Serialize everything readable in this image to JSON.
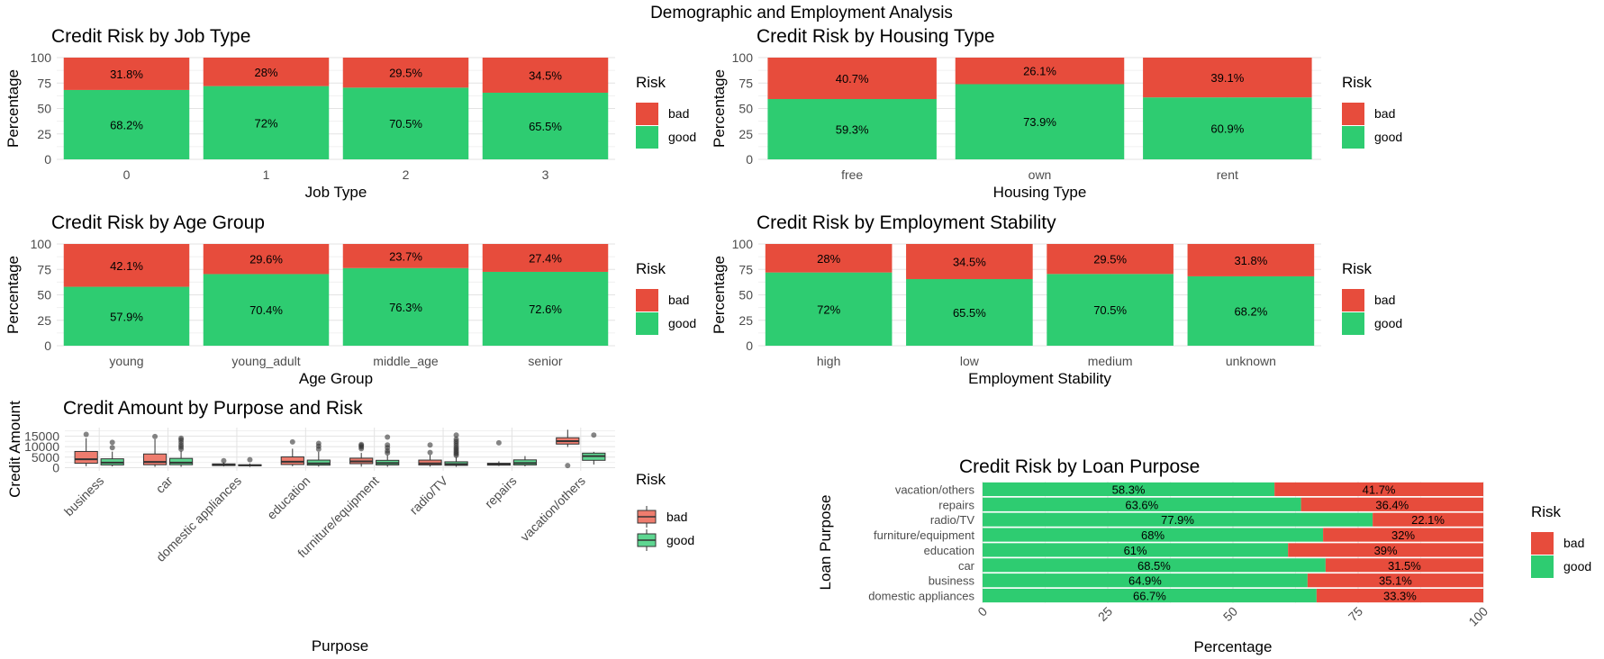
{
  "page_title": "Demographic and Employment Analysis",
  "colors": {
    "bad": "#E74C3C",
    "good": "#2ECC71",
    "bad_box": "#EE7C6E",
    "good_box": "#5ED691"
  },
  "legend": {
    "title": "Risk",
    "bad": "bad",
    "good": "good"
  },
  "chart_data": [
    {
      "type": "bar",
      "stacked": true,
      "title": "Credit Risk by Job Type",
      "xlabel": "Job Type",
      "ylabel": "Percentage",
      "ylim": [
        0,
        100
      ],
      "yticks": [
        "0",
        "25",
        "50",
        "75",
        "100"
      ],
      "categories": [
        "0",
        "1",
        "2",
        "3"
      ],
      "series": [
        {
          "name": "good",
          "values": [
            68.2,
            72,
            70.5,
            65.5
          ],
          "labels": [
            "68.2%",
            "72%",
            "70.5%",
            "65.5%"
          ]
        },
        {
          "name": "bad",
          "values": [
            31.8,
            28,
            29.5,
            34.5
          ],
          "labels": [
            "31.8%",
            "28%",
            "29.5%",
            "34.5%"
          ]
        }
      ]
    },
    {
      "type": "bar",
      "stacked": true,
      "title": "Credit Risk by Housing Type",
      "xlabel": "Housing Type",
      "ylabel": "Percentage",
      "ylim": [
        0,
        100
      ],
      "yticks": [
        "0",
        "25",
        "50",
        "75",
        "100"
      ],
      "categories": [
        "free",
        "own",
        "rent"
      ],
      "series": [
        {
          "name": "good",
          "values": [
            59.3,
            73.9,
            60.9
          ],
          "labels": [
            "59.3%",
            "73.9%",
            "60.9%"
          ]
        },
        {
          "name": "bad",
          "values": [
            40.7,
            26.1,
            39.1
          ],
          "labels": [
            "40.7%",
            "26.1%",
            "39.1%"
          ]
        }
      ]
    },
    {
      "type": "bar",
      "stacked": true,
      "title": "Credit Risk by Age Group",
      "xlabel": "Age Group",
      "ylabel": "Percentage",
      "ylim": [
        0,
        100
      ],
      "yticks": [
        "0",
        "25",
        "50",
        "75",
        "100"
      ],
      "categories": [
        "young",
        "young_adult",
        "middle_age",
        "senior"
      ],
      "series": [
        {
          "name": "good",
          "values": [
            57.9,
            70.4,
            76.3,
            72.6
          ],
          "labels": [
            "57.9%",
            "70.4%",
            "76.3%",
            "72.6%"
          ]
        },
        {
          "name": "bad",
          "values": [
            42.1,
            29.6,
            23.7,
            27.4
          ],
          "labels": [
            "42.1%",
            "29.6%",
            "23.7%",
            "27.4%"
          ]
        }
      ]
    },
    {
      "type": "bar",
      "stacked": true,
      "title": "Credit Risk by Employment Stability",
      "xlabel": "Employment Stability",
      "ylabel": "Percentage",
      "ylim": [
        0,
        100
      ],
      "yticks": [
        "0",
        "25",
        "50",
        "75",
        "100"
      ],
      "categories": [
        "high",
        "low",
        "medium",
        "unknown"
      ],
      "series": [
        {
          "name": "good",
          "values": [
            72,
            65.5,
            70.5,
            68.2
          ],
          "labels": [
            "72%",
            "65.5%",
            "70.5%",
            "68.2%"
          ]
        },
        {
          "name": "bad",
          "values": [
            28,
            34.5,
            29.5,
            31.8
          ],
          "labels": [
            "28%",
            "34.5%",
            "29.5%",
            "31.8%"
          ]
        }
      ]
    },
    {
      "type": "box",
      "title": "Credit Amount by Purpose and Risk",
      "xlabel": "Purpose",
      "ylabel": "Credit Amount",
      "ylim": [
        -1500,
        19000
      ],
      "yticks": [
        {
          "value": 0,
          "label": "0"
        },
        {
          "value": 5000,
          "label": "5000"
        },
        {
          "value": 10000,
          "label": "10000"
        },
        {
          "value": 15000,
          "label": "15000"
        }
      ],
      "categories": [
        "business",
        "car",
        "domestic appliances",
        "education",
        "furniture/equipment",
        "radio/TV",
        "repairs",
        "vacation/others"
      ],
      "series": [
        {
          "name": "bad",
          "boxes": [
            {
              "min": 700,
              "q1": 2100,
              "median": 4000,
              "q3": 7700,
              "max": 14000,
              "outliers": [
                15800
              ]
            },
            {
              "min": 400,
              "q1": 1400,
              "median": 2700,
              "q3": 6500,
              "max": 13500,
              "outliers": [
                14800
              ]
            },
            {
              "min": 600,
              "q1": 1000,
              "median": 1300,
              "q3": 1800,
              "max": 2500,
              "outliers": [
                3300
              ]
            },
            {
              "min": 700,
              "q1": 1500,
              "median": 2800,
              "q3": 5100,
              "max": 9000,
              "outliers": [
                12200
              ]
            },
            {
              "min": 500,
              "q1": 1900,
              "median": 3000,
              "q3": 4500,
              "max": 7000,
              "outliers": [
                9000,
                9800,
                10500,
                11000
              ]
            },
            {
              "min": 500,
              "q1": 1300,
              "median": 2000,
              "q3": 3600,
              "max": 6000,
              "outliers": [
                7200,
                10800
              ]
            },
            {
              "min": 800,
              "q1": 1200,
              "median": 1500,
              "q3": 2100,
              "max": 3000,
              "outliers": [
                11800
              ]
            },
            {
              "min": 9800,
              "q1": 11200,
              "median": 12600,
              "q3": 14200,
              "max": 18000,
              "outliers": [
                1000
              ]
            }
          ]
        },
        {
          "name": "good",
          "boxes": [
            {
              "min": 600,
              "q1": 1300,
              "median": 2400,
              "q3": 4200,
              "max": 7600,
              "outliers": [
                9500,
                12000
              ]
            },
            {
              "min": 400,
              "q1": 1400,
              "median": 2400,
              "q3": 4400,
              "max": 8000,
              "outliers": [
                8800,
                9800,
                10800,
                12000,
                13200,
                14000
              ]
            },
            {
              "min": 400,
              "q1": 900,
              "median": 1100,
              "q3": 1400,
              "max": 2000,
              "outliers": [
                3800
              ]
            },
            {
              "min": 500,
              "q1": 1200,
              "median": 2000,
              "q3": 3600,
              "max": 7500,
              "outliers": [
                8800,
                10200,
                11500
              ]
            },
            {
              "min": 400,
              "q1": 1300,
              "median": 2200,
              "q3": 3500,
              "max": 6000,
              "outliers": [
                7000,
                8000,
                9500,
                10800,
                14500
              ]
            },
            {
              "min": 400,
              "q1": 1100,
              "median": 1700,
              "q3": 2800,
              "max": 5000,
              "outliers": [
                5800,
                6500,
                7200,
                8000,
                8800,
                9500,
                10500,
                11500,
                12500,
                13500,
                15500
              ]
            },
            {
              "min": 600,
              "q1": 1300,
              "median": 2200,
              "q3": 3700,
              "max": 5500,
              "outliers": []
            },
            {
              "min": 1500,
              "q1": 3500,
              "median": 5500,
              "q3": 6900,
              "max": 7500,
              "outliers": [
                15500
              ]
            }
          ]
        }
      ]
    },
    {
      "type": "bar",
      "stacked": true,
      "orientation": "horizontal",
      "title": "Credit Risk by Loan Purpose",
      "xlabel": "Percentage",
      "ylabel": "Loan Purpose",
      "xlim": [
        0,
        100
      ],
      "xticks": [
        "0",
        "25",
        "50",
        "75",
        "100"
      ],
      "categories": [
        "vacation/others",
        "repairs",
        "radio/TV",
        "furniture/equipment",
        "education",
        "car",
        "business",
        "domestic appliances"
      ],
      "series": [
        {
          "name": "good",
          "values": [
            58.3,
            63.6,
            77.9,
            68,
            61,
            68.5,
            64.9,
            66.7
          ],
          "labels": [
            "58.3%",
            "63.6%",
            "77.9%",
            "68%",
            "61%",
            "68.5%",
            "64.9%",
            "66.7%"
          ]
        },
        {
          "name": "bad",
          "values": [
            41.7,
            36.4,
            22.1,
            32,
            39,
            31.5,
            35.1,
            33.3
          ],
          "labels": [
            "41.7%",
            "36.4%",
            "22.1%",
            "32%",
            "39%",
            "31.5%",
            "35.1%",
            "33.3%"
          ]
        }
      ]
    }
  ]
}
